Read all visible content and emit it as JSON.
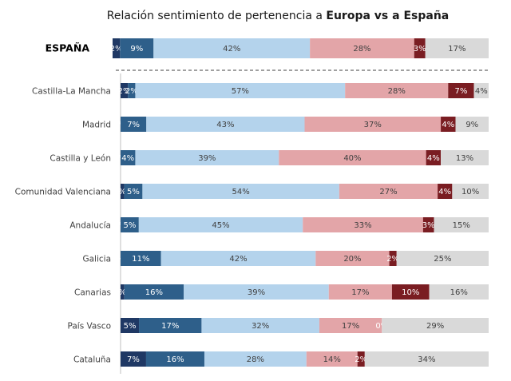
{
  "chart_data": {
    "type": "bar",
    "stacked": true,
    "orientation": "horizontal",
    "title_prefix": "Relación sentimiento de pertenencia a ",
    "title_bold": "Europa vs a España",
    "categories": [
      "ESPAÑA",
      "Castilla-La Mancha",
      "Madrid",
      "Castilla y León",
      "Comunidad Valenciana",
      "Andalucía",
      "Galicia",
      "Canarias",
      "País Vasco",
      "Cataluña"
    ],
    "series_colors": [
      "#1f3864",
      "#2e5f8a",
      "#b4d3ec",
      "#e3a5a8",
      "#7a1d22",
      "#d9d9d9"
    ],
    "label_colors": [
      "#ffffff",
      "#ffffff",
      "#404040",
      "#404040",
      "#ffffff",
      "#404040"
    ],
    "rows": [
      {
        "values": [
          2,
          9,
          42,
          28,
          3,
          17
        ],
        "labels": [
          "2%",
          "9%",
          "42%",
          "28%",
          "3%",
          "17%"
        ]
      },
      {
        "values": [
          2,
          2,
          57,
          28,
          7,
          4
        ],
        "labels": [
          "2%",
          "2%",
          "57%",
          "28%",
          "7%",
          "4%"
        ]
      },
      {
        "values": [
          0,
          7,
          43,
          37,
          4,
          9
        ],
        "labels": [
          "0%",
          "7%",
          "43%",
          "37%",
          "4%",
          "9%"
        ]
      },
      {
        "values": [
          0,
          4,
          39,
          40,
          4,
          13
        ],
        "labels": [
          "0%",
          "4%",
          "39%",
          "40%",
          "4%",
          "13%"
        ]
      },
      {
        "values": [
          1,
          5,
          54,
          27,
          4,
          10
        ],
        "labels": [
          "%",
          "5%",
          "54%",
          "27%",
          "4%",
          "10%"
        ]
      },
      {
        "values": [
          0,
          5,
          45,
          33,
          3,
          15
        ],
        "labels": [
          "0%",
          "5%",
          "45%",
          "33%",
          "3%",
          "15%"
        ]
      },
      {
        "values": [
          0,
          11,
          42,
          20,
          2,
          25
        ],
        "labels": [
          "%",
          "11%",
          "42%",
          "20%",
          "2%",
          "25%"
        ]
      },
      {
        "values": [
          1,
          16,
          39,
          17,
          10,
          16
        ],
        "labels": [
          "%",
          "16%",
          "39%",
          "17%",
          "10%",
          "16%"
        ]
      },
      {
        "values": [
          5,
          17,
          32,
          17,
          0,
          29
        ],
        "labels": [
          "5%",
          "17%",
          "32%",
          "17%",
          "0%",
          "29%"
        ]
      },
      {
        "values": [
          7,
          16,
          28,
          14,
          2,
          34
        ],
        "labels": [
          "7%",
          "16%",
          "28%",
          "14%",
          "2%",
          "34%"
        ]
      }
    ]
  }
}
